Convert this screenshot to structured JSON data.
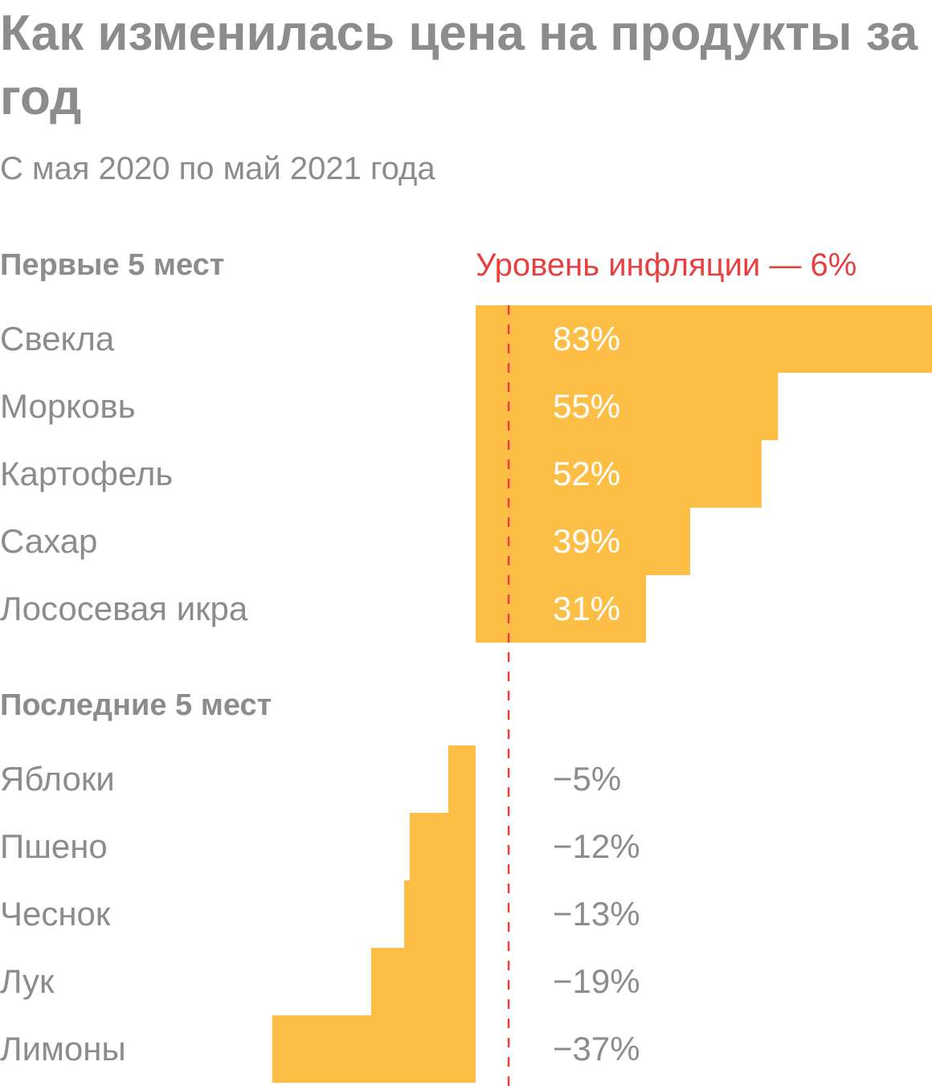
{
  "chart_data": {
    "type": "bar",
    "title": "Как изменилась цена на продукты за год",
    "subtitle": "С мая 2020 по май 2021 года",
    "reference_line": {
      "label": "Уровень инфляции — 6%",
      "value": 6,
      "color": "#e8403f"
    },
    "bar_color": "#fdbe45",
    "groups": [
      {
        "name": "Первые 5 мест",
        "categories": [
          "Свекла",
          "Морковь",
          "Картофель",
          "Сахар",
          "Лососевая икра"
        ],
        "values": [
          83,
          55,
          52,
          39,
          31
        ],
        "value_labels": [
          "83%",
          "55%",
          "52%",
          "39%",
          "31%"
        ]
      },
      {
        "name": "Последние 5 мест",
        "categories": [
          "Яблоки",
          "Пшено",
          "Чеснок",
          "Лук",
          "Лимоны"
        ],
        "values": [
          -5,
          -12,
          -13,
          -19,
          -37
        ],
        "value_labels": [
          "−5%",
          "−12%",
          "−13%",
          "−19%",
          "−37%"
        ]
      }
    ]
  }
}
